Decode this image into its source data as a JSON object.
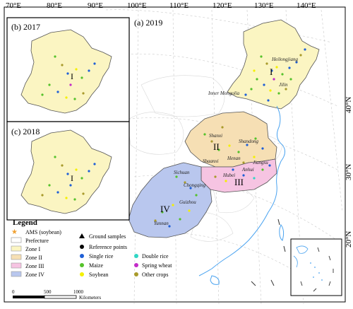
{
  "top_axis": {
    "labels": [
      "70°E",
      "80°E",
      "90°E",
      "100°E",
      "110°E",
      "120°E",
      "130°E",
      "140°E"
    ]
  },
  "right_axis": {
    "labels": [
      "40°N",
      "30°N",
      "20°N"
    ]
  },
  "panels": {
    "main": {
      "title": "(a) 2019"
    },
    "inset_b": {
      "title": "(b) 2017",
      "zone": "I"
    },
    "inset_c": {
      "title": "(c) 2018",
      "zone": "I"
    }
  },
  "zone_labels": [
    "I",
    "II",
    "III",
    "IV"
  ],
  "provinces": [
    "Heilongjiang",
    "Jilin",
    "Inner Mongolia",
    "Shanxi",
    "Shandong",
    "Shaanxi",
    "Henan",
    "Jiangsu",
    "Anhui",
    "Hubei",
    "Sichuan",
    "Chongqing",
    "Guizhou",
    "Yunnan"
  ],
  "legend": {
    "title": "Legend",
    "items": [
      {
        "label": "AMS (soybean)",
        "symbol": "star",
        "color": "#f0a030"
      },
      {
        "label": "Ground samples",
        "symbol": "triangle",
        "color": "#000000"
      },
      {
        "label": "Prefecture",
        "symbol": "outline",
        "color": "#aaaaaa"
      },
      {
        "label": "Reference points",
        "symbol": "dot",
        "color": "#000000"
      },
      {
        "label": "Zone I",
        "symbol": "fill",
        "color": "#fbf5c2"
      },
      {
        "label": "Single rice",
        "symbol": "dot",
        "color": "#1f5fd6"
      },
      {
        "label": "Double rice",
        "symbol": "dot",
        "color": "#2fd6c4"
      },
      {
        "label": "Zone II",
        "symbol": "fill",
        "color": "#f6dfb4"
      },
      {
        "label": "Maize",
        "symbol": "dot",
        "color": "#55c22b"
      },
      {
        "label": "Spring wheat",
        "symbol": "dot",
        "color": "#c22bc8"
      },
      {
        "label": "Zone III",
        "symbol": "fill",
        "color": "#f6c4e2"
      },
      {
        "label": "Soybean",
        "symbol": "dot",
        "color": "#f4f000"
      },
      {
        "label": "Other crops",
        "symbol": "dot",
        "color": "#a89a2b"
      },
      {
        "label": "Zone IV",
        "symbol": "fill",
        "color": "#b9c7ee"
      }
    ]
  },
  "scale_bar": {
    "ticks": [
      "0",
      "500",
      "1000"
    ],
    "unit": "Kilometers"
  },
  "colors": {
    "zone1": "#fbf5c2",
    "zone2": "#f6dfb4",
    "zone3": "#f6c4e2",
    "zone4": "#b9c7ee",
    "coast": "#4aa3f0",
    "border": "#444444"
  }
}
